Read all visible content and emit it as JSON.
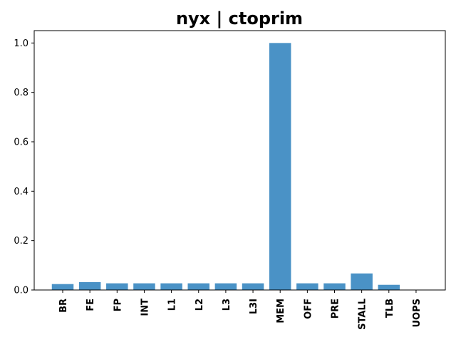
{
  "chart_data": {
    "type": "bar",
    "title": "nyx | ctoprim",
    "xlabel": "",
    "ylabel": "",
    "categories": [
      "BR",
      "FE",
      "FP",
      "INT",
      "L1",
      "L2",
      "L3",
      "L3I",
      "MEM",
      "OFF",
      "PRE",
      "STALL",
      "TLB",
      "UOPS"
    ],
    "values": [
      0.024,
      0.032,
      0.027,
      0.027,
      0.027,
      0.027,
      0.027,
      0.027,
      1.0,
      0.027,
      0.027,
      0.067,
      0.021,
      0.001
    ],
    "ylim": [
      0,
      1.05
    ],
    "yticks": [
      0.0,
      0.2,
      0.4,
      0.6,
      0.8,
      1.0
    ],
    "ytick_labels": [
      "0.0",
      "0.2",
      "0.4",
      "0.6",
      "0.8",
      "1.0"
    ],
    "bar_color": "#4a92c6",
    "grid": false,
    "legend": "none"
  }
}
